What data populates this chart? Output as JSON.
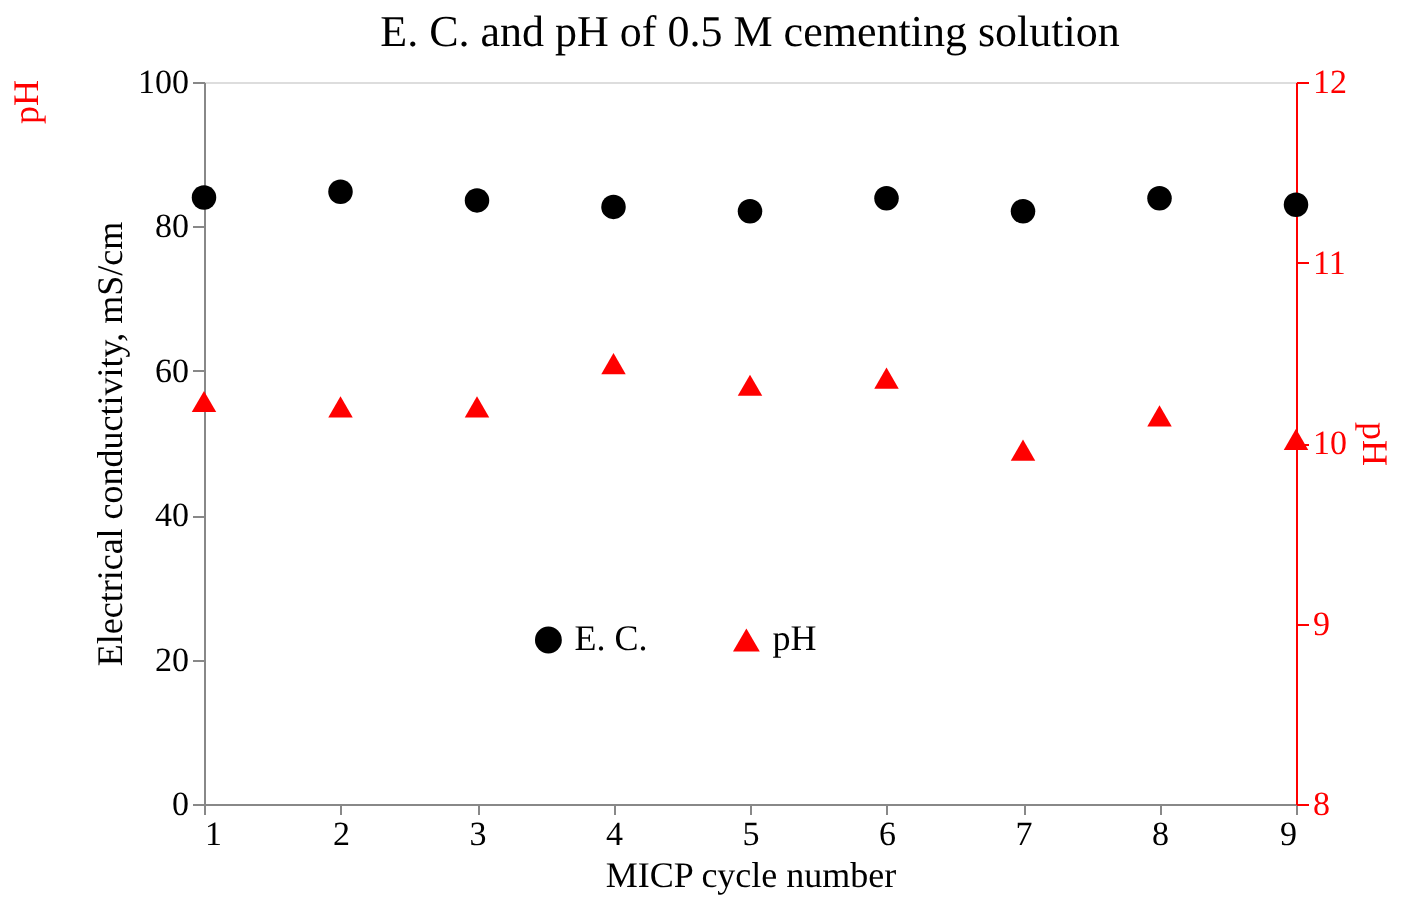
{
  "chart_data": {
    "type": "scatter",
    "title": "E. C. and pH of 0.5 M cementing solution",
    "xlabel": "MICP cycle number",
    "ylabel": "Electrical conductivity, mS/cm",
    "y2label": "pH",
    "x": [
      1,
      2,
      3,
      4,
      5,
      6,
      7,
      8,
      9
    ],
    "series": [
      {
        "name": "E. C.",
        "color": "#000000",
        "marker": "circle",
        "values": [
          84.0,
          84.8,
          83.6,
          82.7,
          82.1,
          83.9,
          82.1,
          83.9,
          83.0
        ]
      },
      {
        "name": "pH",
        "color": "#ff0000",
        "marker": "triangle",
        "axis": "y2",
        "values": [
          10.23,
          10.2,
          10.2,
          10.44,
          10.32,
          10.36,
          9.96,
          10.15,
          10.02
        ]
      }
    ],
    "xlim": [
      1,
      9
    ],
    "xticks": [
      1,
      2,
      3,
      4,
      5,
      6,
      7,
      8,
      9
    ],
    "ylim": [
      0,
      100
    ],
    "yticks": [
      0,
      20,
      40,
      60,
      80,
      100
    ],
    "y2lim": [
      8,
      12
    ],
    "y2ticks": [
      8,
      9,
      10,
      11,
      12
    ],
    "annotations": [
      "pH"
    ],
    "legend": "bottom",
    "grid": false
  }
}
